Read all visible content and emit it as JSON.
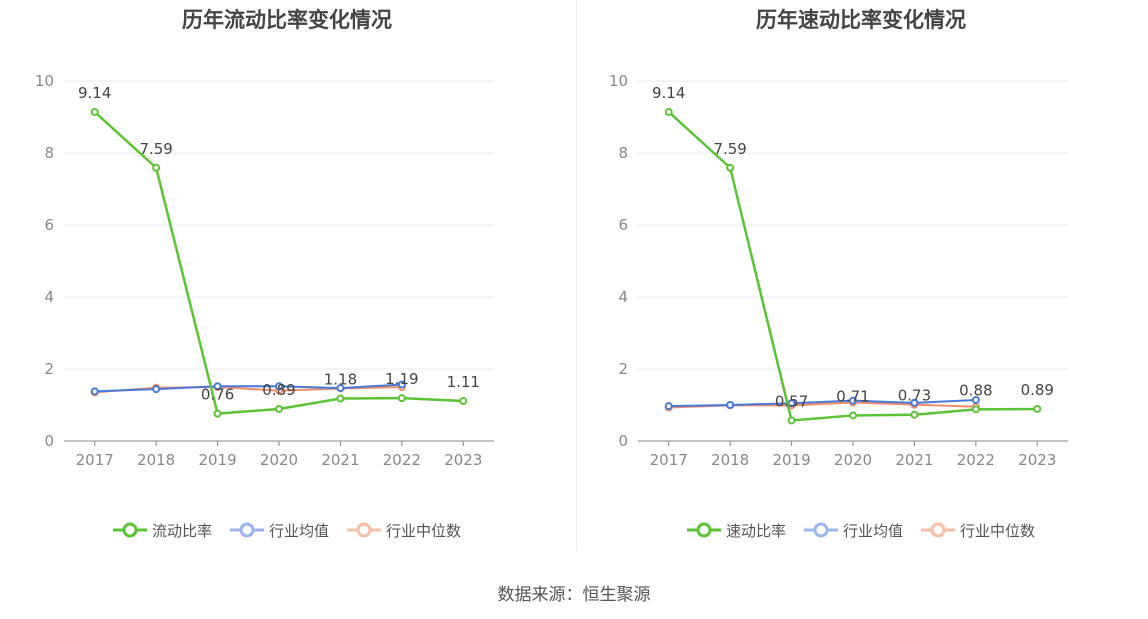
{
  "source_text": "数据来源：恒生聚源",
  "colors": {
    "company": "#5cc236",
    "avg": "#4a78d8",
    "median": "#ef8d6a",
    "grid": "#e6e9f2",
    "axis": "#888888"
  },
  "chart_data": [
    {
      "type": "line",
      "title": "历年流动比率变化情况",
      "categories": [
        "2017",
        "2018",
        "2019",
        "2020",
        "2021",
        "2022",
        "2023"
      ],
      "ylim": [
        0,
        10
      ],
      "yticks": [
        0,
        2,
        4,
        6,
        8,
        10
      ],
      "grid": true,
      "legend_position": "bottom",
      "series": [
        {
          "name": "流动比率",
          "values": [
            9.14,
            7.59,
            0.76,
            0.89,
            1.18,
            1.19,
            1.11
          ],
          "labels": [
            "9.14",
            "7.59",
            "0.76",
            "0.89",
            "1.18",
            "1.19",
            "1.11"
          ]
        },
        {
          "name": "行业均值",
          "values": [
            1.38,
            1.44,
            1.52,
            1.52,
            1.47,
            1.57,
            null
          ]
        },
        {
          "name": "行业中位数",
          "values": [
            1.35,
            1.48,
            1.5,
            1.4,
            1.46,
            1.5,
            null
          ]
        }
      ]
    },
    {
      "type": "line",
      "title": "历年速动比率变化情况",
      "categories": [
        "2017",
        "2018",
        "2019",
        "2020",
        "2021",
        "2022",
        "2023"
      ],
      "ylim": [
        0,
        10
      ],
      "yticks": [
        0,
        2,
        4,
        6,
        8,
        10
      ],
      "grid": true,
      "legend_position": "bottom",
      "series": [
        {
          "name": "速动比率",
          "values": [
            9.14,
            7.59,
            0.57,
            0.71,
            0.73,
            0.88,
            0.89
          ],
          "labels": [
            "9.14",
            "7.59",
            "0.57",
            "0.71",
            "0.73",
            "0.88",
            "0.89"
          ]
        },
        {
          "name": "行业均值",
          "values": [
            0.97,
            1.0,
            1.05,
            1.12,
            1.06,
            1.14,
            null
          ]
        },
        {
          "name": "行业中位数",
          "values": [
            0.93,
            0.99,
            0.99,
            1.07,
            1.01,
            0.95,
            null
          ]
        }
      ]
    }
  ]
}
